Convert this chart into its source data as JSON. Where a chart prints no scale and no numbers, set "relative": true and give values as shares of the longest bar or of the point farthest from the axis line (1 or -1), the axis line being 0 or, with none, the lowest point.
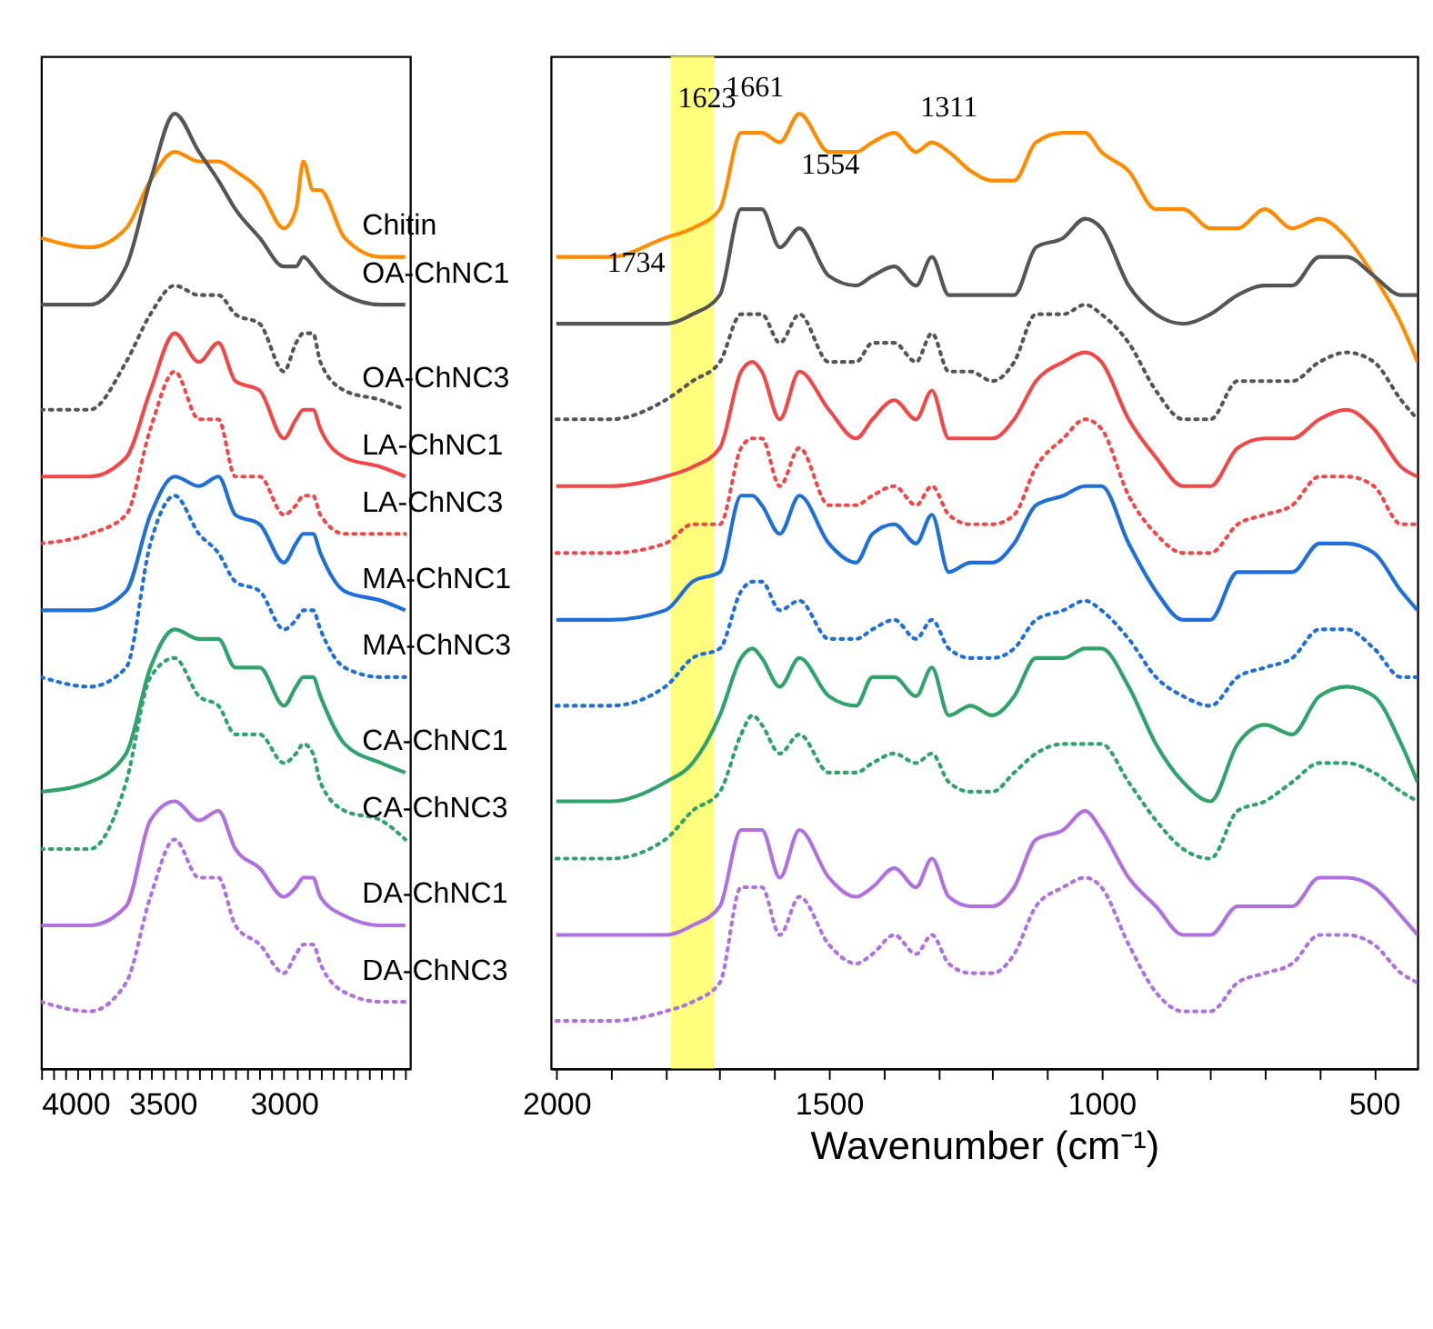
{
  "chart_data": [
    {
      "type": "line",
      "relative": true,
      "tick_labels": "x",
      "legend": false,
      "grid": false,
      "x": [
        4000,
        3800,
        3650,
        3550,
        3450,
        3350,
        3270,
        3200,
        3100,
        3000,
        2950,
        2920,
        2880,
        2850,
        2750,
        2600,
        2500
      ],
      "xlim": [
        4000,
        2480
      ],
      "xticks": [
        4000,
        {
          "value": 3950,
          "label": null
        },
        {
          "value": 3900,
          "label": null
        },
        {
          "value": 3850,
          "label": null
        },
        {
          "value": 3800,
          "label": null
        },
        {
          "value": 3750,
          "label": null
        },
        {
          "value": 3700,
          "label": null
        },
        {
          "value": 3650,
          "label": null
        },
        {
          "value": 3600,
          "label": null
        },
        {
          "value": 3550,
          "label": null
        },
        3500,
        {
          "value": 3450,
          "label": null
        },
        {
          "value": 3400,
          "label": null
        },
        {
          "value": 3350,
          "label": null
        },
        {
          "value": 3300,
          "label": null
        },
        {
          "value": 3250,
          "label": null
        },
        {
          "value": 3200,
          "label": null
        },
        {
          "value": 3150,
          "label": null
        },
        {
          "value": 3100,
          "label": null
        },
        {
          "value": 3050,
          "label": null
        },
        3000,
        {
          "value": 2950,
          "label": null
        },
        {
          "value": 2900,
          "label": null
        },
        {
          "value": 2850,
          "label": null
        },
        {
          "value": 2800,
          "label": null
        },
        {
          "value": 2750,
          "label": null
        },
        {
          "value": 2700,
          "label": null
        },
        {
          "value": 2650,
          "label": null
        },
        {
          "value": 2600,
          "label": null
        },
        {
          "value": 2550,
          "label": null
        },
        {
          "value": 2500,
          "label": null
        }
      ],
      "series": [
        {
          "name": "Chitin",
          "color": "#ff8c00",
          "line_style": "solid",
          "values": [
            0.87,
            0.86,
            0.88,
            0.93,
            0.96,
            0.95,
            0.95,
            0.94,
            0.92,
            0.88,
            0.9,
            0.95,
            0.92,
            0.92,
            0.87,
            0.85,
            0.85
          ]
        },
        {
          "name": "OA-ChNC1",
          "color": "#555555",
          "line_style": "solid",
          "values": [
            0.8,
            0.8,
            0.84,
            0.93,
            1.0,
            0.96,
            0.93,
            0.9,
            0.87,
            0.84,
            0.84,
            0.85,
            0.84,
            0.83,
            0.81,
            0.8,
            0.8
          ]
        },
        {
          "name": "OA-ChNC3",
          "color": "#555555",
          "line_style": "dotted",
          "values": [
            0.69,
            0.69,
            0.74,
            0.79,
            0.82,
            0.81,
            0.81,
            0.79,
            0.78,
            0.73,
            0.76,
            0.77,
            0.77,
            0.74,
            0.71,
            0.7,
            0.69
          ]
        },
        {
          "name": "LA-ChNC1",
          "color": "#f04848",
          "line_style": "solid",
          "values": [
            0.62,
            0.62,
            0.64,
            0.71,
            0.77,
            0.74,
            0.76,
            0.72,
            0.71,
            0.66,
            0.68,
            0.69,
            0.69,
            0.67,
            0.64,
            0.63,
            0.62
          ]
        },
        {
          "name": "LA-ChNC3",
          "color": "#f04848",
          "line_style": "dotted",
          "values": [
            0.55,
            0.56,
            0.58,
            0.67,
            0.73,
            0.68,
            0.68,
            0.62,
            0.62,
            0.58,
            0.59,
            0.6,
            0.6,
            0.58,
            0.56,
            0.56,
            0.56
          ]
        },
        {
          "name": "MA-ChNC1",
          "color": "#1f6fd8",
          "line_style": "solid",
          "values": [
            0.48,
            0.48,
            0.5,
            0.58,
            0.62,
            0.61,
            0.62,
            0.58,
            0.57,
            0.53,
            0.55,
            0.56,
            0.56,
            0.54,
            0.5,
            0.49,
            0.48
          ]
        },
        {
          "name": "MA-ChNC3",
          "color": "#1f6fd8",
          "line_style": "dotted",
          "values": [
            0.41,
            0.4,
            0.42,
            0.55,
            0.6,
            0.56,
            0.54,
            0.51,
            0.5,
            0.46,
            0.47,
            0.48,
            0.48,
            0.46,
            0.42,
            0.41,
            0.41
          ]
        },
        {
          "name": "CA-ChNC1",
          "color": "#2ea36a",
          "line_style": "solid",
          "values": [
            0.29,
            0.3,
            0.33,
            0.42,
            0.46,
            0.45,
            0.45,
            0.42,
            0.42,
            0.38,
            0.4,
            0.41,
            0.41,
            0.39,
            0.34,
            0.32,
            0.31
          ]
        },
        {
          "name": "CA-ChNC3",
          "color": "#2ea36a",
          "line_style": "dotted",
          "values": [
            0.23,
            0.23,
            0.3,
            0.41,
            0.43,
            0.39,
            0.38,
            0.35,
            0.35,
            0.32,
            0.33,
            0.34,
            0.33,
            0.3,
            0.27,
            0.26,
            0.24
          ]
        },
        {
          "name": "DA-ChNC1",
          "color": "#b070e0",
          "line_style": "solid",
          "values": [
            0.15,
            0.15,
            0.17,
            0.26,
            0.28,
            0.26,
            0.27,
            0.23,
            0.21,
            0.18,
            0.19,
            0.2,
            0.2,
            0.18,
            0.16,
            0.15,
            0.15
          ]
        },
        {
          "name": "DA-ChNC3",
          "color": "#b070e0",
          "line_style": "dotted",
          "values": [
            0.07,
            0.06,
            0.09,
            0.18,
            0.24,
            0.2,
            0.2,
            0.15,
            0.13,
            0.1,
            0.12,
            0.13,
            0.13,
            0.11,
            0.08,
            0.07,
            0.07
          ]
        }
      ]
    },
    {
      "type": "line",
      "relative": true,
      "tick_labels": "x",
      "legend": false,
      "grid": false,
      "xlabel": "Wavenumber (cm⁻¹)",
      "x": [
        2000,
        1900,
        1800,
        1750,
        1700,
        1661,
        1640,
        1623,
        1590,
        1554,
        1500,
        1450,
        1420,
        1380,
        1340,
        1311,
        1280,
        1240,
        1200,
        1160,
        1120,
        1070,
        1030,
        1000,
        950,
        900,
        850,
        800,
        750,
        700,
        650,
        600,
        550,
        500,
        450,
        420
      ],
      "xlim": [
        2010,
        420
      ],
      "xticks": [
        2000,
        {
          "value": 1900,
          "label": null
        },
        {
          "value": 1800,
          "label": null
        },
        {
          "value": 1700,
          "label": null
        },
        {
          "value": 1600,
          "label": null
        },
        1500,
        {
          "value": 1400,
          "label": null
        },
        {
          "value": 1300,
          "label": null
        },
        {
          "value": 1200,
          "label": null
        },
        {
          "value": 1100,
          "label": null
        },
        1000,
        {
          "value": 900,
          "label": null
        },
        {
          "value": 800,
          "label": null
        },
        {
          "value": 700,
          "label": null
        },
        {
          "value": 600,
          "label": null
        },
        500
      ],
      "bands": [
        {
          "axis": "x",
          "from": 1790,
          "to": 1710,
          "color": "#ffff66"
        }
      ],
      "annotations": [
        {
          "text": "1623",
          "x": 1623,
          "y": 0.98
        },
        {
          "text": "1661",
          "x": 1661,
          "y": 0.98
        },
        {
          "text": "1734",
          "x": 1734,
          "y": 0.89
        },
        {
          "text": "1554",
          "x": 1554,
          "y": 1.0
        },
        {
          "text": "1311",
          "x": 1311,
          "y": 0.97
        }
      ],
      "series": [
        {
          "color": "#ff8c00",
          "line_style": "solid",
          "values": [
            0.85,
            0.85,
            0.87,
            0.88,
            0.9,
            0.98,
            0.98,
            0.98,
            0.97,
            1.0,
            0.96,
            0.96,
            0.97,
            0.98,
            0.96,
            0.97,
            0.96,
            0.94,
            0.93,
            0.93,
            0.97,
            0.98,
            0.98,
            0.96,
            0.94,
            0.9,
            0.9,
            0.88,
            0.88,
            0.9,
            0.88,
            0.89,
            0.87,
            0.83,
            0.78,
            0.74
          ]
        },
        {
          "color": "#555555",
          "line_style": "solid",
          "values": [
            0.78,
            0.78,
            0.78,
            0.79,
            0.81,
            0.9,
            0.9,
            0.9,
            0.86,
            0.88,
            0.83,
            0.82,
            0.83,
            0.84,
            0.82,
            0.85,
            0.81,
            0.81,
            0.81,
            0.81,
            0.86,
            0.87,
            0.89,
            0.88,
            0.82,
            0.79,
            0.78,
            0.79,
            0.81,
            0.82,
            0.82,
            0.85,
            0.85,
            0.83,
            0.81,
            0.81
          ]
        },
        {
          "color": "#555555",
          "line_style": "dotted",
          "values": [
            0.68,
            0.68,
            0.7,
            0.72,
            0.74,
            0.79,
            0.79,
            0.79,
            0.76,
            0.79,
            0.74,
            0.74,
            0.76,
            0.76,
            0.74,
            0.77,
            0.73,
            0.73,
            0.72,
            0.74,
            0.79,
            0.79,
            0.8,
            0.79,
            0.76,
            0.71,
            0.68,
            0.68,
            0.72,
            0.72,
            0.72,
            0.74,
            0.75,
            0.74,
            0.7,
            0.68
          ]
        },
        {
          "color": "#f04848",
          "line_style": "solid",
          "values": [
            0.61,
            0.61,
            0.62,
            0.63,
            0.65,
            0.73,
            0.74,
            0.73,
            0.68,
            0.73,
            0.69,
            0.66,
            0.68,
            0.7,
            0.68,
            0.71,
            0.66,
            0.66,
            0.66,
            0.68,
            0.72,
            0.74,
            0.75,
            0.74,
            0.68,
            0.64,
            0.61,
            0.61,
            0.65,
            0.66,
            0.66,
            0.68,
            0.69,
            0.67,
            0.63,
            0.62
          ]
        },
        {
          "color": "#f04848",
          "line_style": "dotted",
          "values": [
            0.54,
            0.54,
            0.55,
            0.57,
            0.57,
            0.65,
            0.66,
            0.66,
            0.61,
            0.65,
            0.59,
            0.59,
            0.6,
            0.61,
            0.59,
            0.61,
            0.58,
            0.57,
            0.57,
            0.58,
            0.63,
            0.66,
            0.68,
            0.67,
            0.6,
            0.56,
            0.54,
            0.54,
            0.57,
            0.58,
            0.59,
            0.62,
            0.62,
            0.61,
            0.57,
            0.57
          ]
        },
        {
          "color": "#1f6fd8",
          "line_style": "solid",
          "values": [
            0.47,
            0.47,
            0.48,
            0.51,
            0.52,
            0.6,
            0.6,
            0.59,
            0.56,
            0.6,
            0.55,
            0.53,
            0.56,
            0.57,
            0.55,
            0.58,
            0.52,
            0.53,
            0.53,
            0.55,
            0.59,
            0.6,
            0.61,
            0.61,
            0.55,
            0.5,
            0.47,
            0.47,
            0.52,
            0.52,
            0.52,
            0.55,
            0.55,
            0.54,
            0.5,
            0.48
          ]
        },
        {
          "color": "#1f6fd8",
          "line_style": "dotted",
          "values": [
            0.38,
            0.38,
            0.4,
            0.43,
            0.44,
            0.5,
            0.51,
            0.51,
            0.48,
            0.49,
            0.45,
            0.45,
            0.46,
            0.47,
            0.45,
            0.47,
            0.44,
            0.43,
            0.43,
            0.44,
            0.47,
            0.48,
            0.49,
            0.48,
            0.45,
            0.41,
            0.39,
            0.38,
            0.41,
            0.42,
            0.43,
            0.46,
            0.46,
            0.44,
            0.41,
            0.41
          ]
        },
        {
          "color": "#2ea36a",
          "line_style": "solid",
          "values": [
            0.28,
            0.28,
            0.3,
            0.32,
            0.37,
            0.43,
            0.44,
            0.43,
            0.4,
            0.43,
            0.39,
            0.38,
            0.41,
            0.41,
            0.39,
            0.42,
            0.37,
            0.38,
            0.37,
            0.39,
            0.43,
            0.43,
            0.44,
            0.44,
            0.4,
            0.34,
            0.3,
            0.28,
            0.34,
            0.36,
            0.35,
            0.39,
            0.4,
            0.39,
            0.34,
            0.3
          ]
        },
        {
          "color": "#2ea36a",
          "line_style": "dotted",
          "values": [
            0.22,
            0.22,
            0.24,
            0.27,
            0.29,
            0.35,
            0.37,
            0.36,
            0.33,
            0.35,
            0.31,
            0.31,
            0.32,
            0.33,
            0.32,
            0.33,
            0.3,
            0.29,
            0.29,
            0.31,
            0.33,
            0.34,
            0.34,
            0.34,
            0.3,
            0.26,
            0.23,
            0.22,
            0.27,
            0.28,
            0.3,
            0.32,
            0.32,
            0.31,
            0.29,
            0.28
          ]
        },
        {
          "color": "#b070e0",
          "line_style": "solid",
          "values": [
            0.14,
            0.14,
            0.14,
            0.15,
            0.17,
            0.25,
            0.25,
            0.25,
            0.2,
            0.25,
            0.2,
            0.18,
            0.19,
            0.21,
            0.19,
            0.22,
            0.18,
            0.17,
            0.17,
            0.19,
            0.24,
            0.25,
            0.27,
            0.25,
            0.2,
            0.17,
            0.14,
            0.14,
            0.17,
            0.17,
            0.17,
            0.2,
            0.2,
            0.19,
            0.16,
            0.14
          ]
        },
        {
          "color": "#b070e0",
          "line_style": "dotted",
          "values": [
            0.05,
            0.05,
            0.06,
            0.07,
            0.09,
            0.19,
            0.19,
            0.19,
            0.14,
            0.18,
            0.13,
            0.11,
            0.12,
            0.14,
            0.12,
            0.14,
            0.11,
            0.1,
            0.1,
            0.12,
            0.17,
            0.19,
            0.2,
            0.19,
            0.13,
            0.08,
            0.06,
            0.06,
            0.09,
            0.1,
            0.11,
            0.14,
            0.14,
            0.13,
            0.1,
            0.09
          ]
        }
      ]
    }
  ]
}
